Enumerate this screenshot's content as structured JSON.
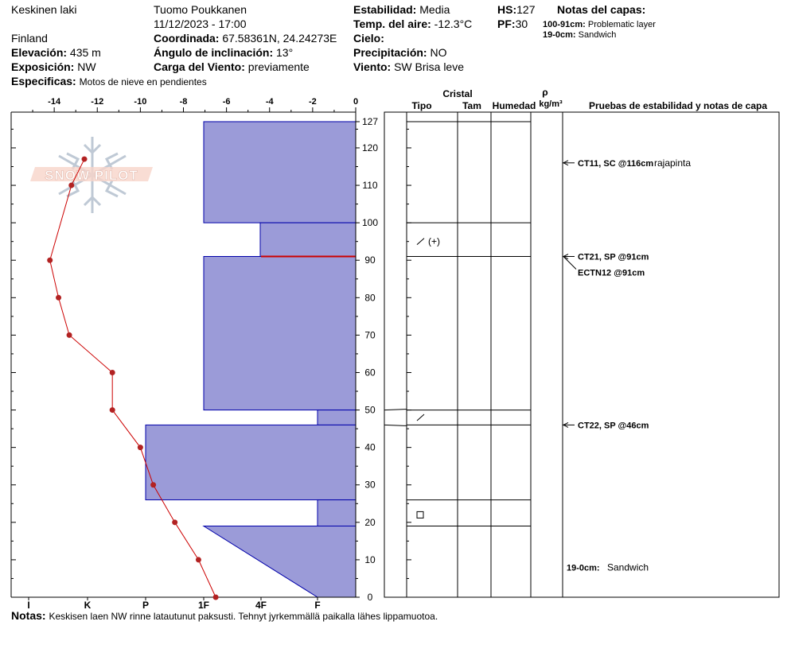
{
  "header": {
    "location": "Keskinen laki",
    "country": "Finland",
    "observer": "Tuomo Poukkanen",
    "datetime": "11/12/2023 - 17:00",
    "elevation_label": "Elevación:",
    "elevation": "435 m",
    "exposure_label": "Exposición:",
    "exposure": "NW",
    "specifics_label": "Especificas:",
    "specifics": "Motos de nieve en pendientes",
    "coord_label": "Coordinada:",
    "coord": "67.58361N, 24.24273E",
    "slope_label": "Ángulo de inclinación:",
    "slope": "13°",
    "wind_load_label": "Carga del Viento:",
    "wind_load": "previamente",
    "stability_label": "Estabilidad:",
    "stability": "Media",
    "air_temp_label": "Temp. del aire:",
    "air_temp": "-12.3°C",
    "sky_label": "Cielo:",
    "precip_label": "Precipitación:",
    "precip": "NO",
    "wind_label": "Viento:",
    "wind": "SW Brisa leve",
    "hs_label": "HS:",
    "hs": "127",
    "pf_label": "PF:",
    "pf": "30",
    "layer_notes_label": "Notas del capas:",
    "layer_notes": [
      {
        "range": "100-91cm:",
        "text": "Problematic layer"
      },
      {
        "range": "19-0cm:",
        "text": "Sandwich"
      }
    ]
  },
  "notes_label": "Notas:",
  "notes": "Keskisen laen NW rinne latautunut paksusti. Tehnyt jyrkemmällä paikalla lähes lippamuotoa.",
  "watermark": "SNOW PILOT",
  "columns": {
    "cristal": "Cristal",
    "tipo": "Tipo",
    "tam": "Tam",
    "humedad": "Humedad",
    "rho": "ρ",
    "density_unit": "kg/m³",
    "tests": "Pruebas de estabilidad y notas de capa"
  },
  "colors": {
    "hardness_fill": "#9b9bd8",
    "hardness_stroke": "#0000aa",
    "temp_line": "#cc0000",
    "temp_point": "#b22222",
    "problem_layer": "#cc0000"
  },
  "chart_data": {
    "type": "snow_profile",
    "depth_axis": {
      "min": 0,
      "max": 127,
      "ticks": [
        0,
        10,
        20,
        30,
        40,
        50,
        60,
        70,
        80,
        90,
        100,
        110,
        120
      ],
      "top_label": "127"
    },
    "temp_axis": {
      "min": -16,
      "max": 0,
      "ticks": [
        -14,
        -12,
        -10,
        -8,
        -6,
        -4,
        -2,
        0
      ]
    },
    "hardness_axis": {
      "labels": [
        "I",
        "K",
        "P",
        "1F",
        "4F",
        "F"
      ]
    },
    "temperature_profile": [
      {
        "depth": 117,
        "temp": -12.6
      },
      {
        "depth": 110,
        "temp": -13.2
      },
      {
        "depth": 90,
        "temp": -14.2
      },
      {
        "depth": 80,
        "temp": -13.8
      },
      {
        "depth": 70,
        "temp": -13.3
      },
      {
        "depth": 60,
        "temp": -11.3
      },
      {
        "depth": 50,
        "temp": -11.3
      },
      {
        "depth": 40,
        "temp": -10.0
      },
      {
        "depth": 30,
        "temp": -9.4
      },
      {
        "depth": 20,
        "temp": -8.4
      },
      {
        "depth": 10,
        "temp": -7.3
      },
      {
        "depth": 0,
        "temp": -6.5
      }
    ],
    "hardness_layers": [
      {
        "top": 127,
        "bottom": 100,
        "hardness": "1F"
      },
      {
        "top": 100,
        "bottom": 91,
        "hardness": "1F+"
      },
      {
        "top": 91,
        "bottom": 50,
        "hardness": "1F"
      },
      {
        "top": 50,
        "bottom": 46,
        "hardness": "F"
      },
      {
        "top": 46,
        "bottom": 26,
        "hardness": "P"
      },
      {
        "top": 26,
        "bottom": 19,
        "hardness": "F"
      },
      {
        "top": 19,
        "bottom": 0,
        "hardness": "1F→F"
      }
    ],
    "layer_boundaries": [
      127,
      100,
      91,
      50,
      46,
      26,
      19
    ],
    "crystal_symbols": [
      {
        "depth": 95,
        "symbol": "/",
        "extra": "(+)"
      },
      {
        "depth": 48,
        "symbol": "/",
        "extra": ""
      },
      {
        "depth": 22,
        "symbol": "□",
        "extra": ""
      }
    ],
    "tests": [
      {
        "depth": 116,
        "label": "CT11, SC @116cm",
        "note": "rajapinta"
      },
      {
        "depth": 91,
        "label": "CT21, SP @91cm",
        "note": ""
      },
      {
        "depth": 91,
        "label": "ECTN12 @91cm",
        "note": ""
      },
      {
        "depth": 46,
        "label": "CT22, SP @46cm",
        "note": ""
      }
    ],
    "layer_comment": {
      "depth": 8,
      "range": "19-0cm:",
      "text": "Sandwich"
    }
  }
}
